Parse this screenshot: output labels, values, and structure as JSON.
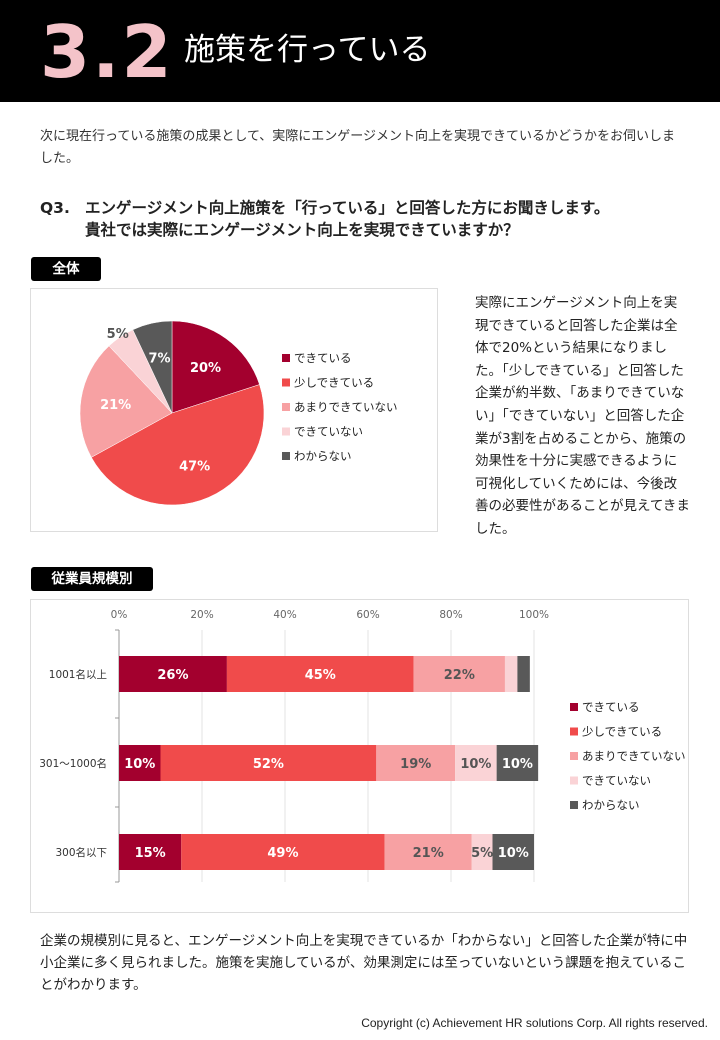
{
  "header": {
    "number": "3.2",
    "title": "施策を行っている"
  },
  "intro": "次に現在行っている施策の成果として、実際にエンゲージメント向上を実現できているかどうかをお伺いしました。",
  "question": {
    "label": "Q3.",
    "line1": "エンゲージメント向上施策を「行っている」と回答した方にお聞きします。",
    "line2": "貴社では実際にエンゲージメント向上を実現できていますか？"
  },
  "section_all": "全体",
  "section_size": "従業員規模別",
  "side_text": "実際にエンゲージメント向上を実現できていると回答した企業は全体で20%という結果になりました。「少しできている」と回答した企業が約半数、「あまりできていない」「できていない」と回答した企業が3割を占めることから、施策の効果性を十分に実感できるように可視化していくためには、今後改善の必要性があることが見えてきました。",
  "bottom_text": "企業の規模別に見ると、エンゲージメント向上を実現できているか「わからない」と回答した企業が特に中小企業に多く見られました。施策を実施しているが、効果測定には至っていないという課題を抱えていることがわかります。",
  "copyright": "Copyright (c)  Achievement HR solutions Corp. All rights reserved.",
  "colors": {
    "series": [
      "#a3002e",
      "#f04b4b",
      "#f7a1a3",
      "#fad3d6",
      "#595959"
    ]
  },
  "chart_data": [
    {
      "type": "pie",
      "title": "全体",
      "legend": [
        "できている",
        "少しできている",
        "あまりできていない",
        "できていない",
        "わからない"
      ],
      "values": [
        20,
        47,
        21,
        5,
        7
      ],
      "labels": [
        "20%",
        "47%",
        "21%",
        "5%",
        "7%"
      ],
      "legend_position": "right"
    },
    {
      "type": "bar",
      "orientation": "horizontal-stacked",
      "title": "従業員規模別",
      "categories": [
        "1001名以上",
        "301～1000名",
        "300名以下"
      ],
      "series": [
        {
          "name": "できている",
          "values": [
            26,
            10,
            15
          ],
          "labels": [
            "26%",
            "10%",
            "15%"
          ]
        },
        {
          "name": "少しできている",
          "values": [
            45,
            52,
            49
          ],
          "labels": [
            "45%",
            "52%",
            "49%"
          ]
        },
        {
          "name": "あまりできていない",
          "values": [
            22,
            19,
            21
          ],
          "labels": [
            "22%",
            "19%",
            "21%"
          ]
        },
        {
          "name": "できていない",
          "values": [
            3,
            10,
            5
          ],
          "labels": [
            "",
            "10%",
            "5%"
          ]
        },
        {
          "name": "わからない",
          "values": [
            3,
            10,
            10
          ],
          "labels": [
            "",
            "10%",
            "10%"
          ]
        }
      ],
      "xticks": [
        "0%",
        "20%",
        "40%",
        "60%",
        "80%",
        "100%"
      ],
      "xlim": [
        0,
        100
      ],
      "legend_position": "right",
      "grid": true
    }
  ]
}
